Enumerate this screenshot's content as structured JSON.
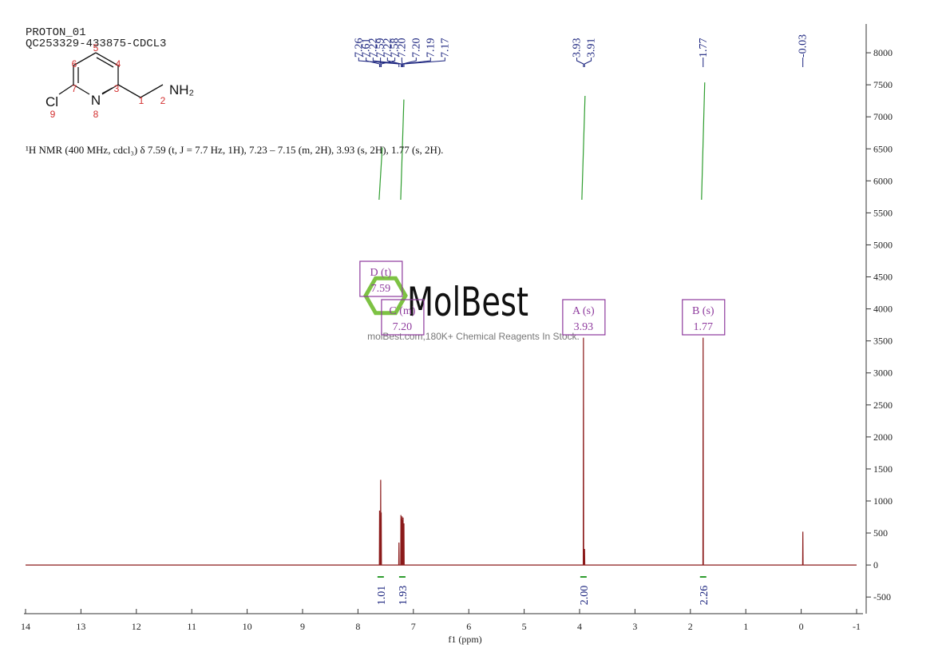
{
  "header": {
    "experiment": "PROTON_01",
    "sample": "QC253329-433875-CDCL3"
  },
  "structure": {
    "atoms": [
      "Cl",
      "N",
      "NH₂"
    ],
    "numbering": [
      1,
      2,
      3,
      4,
      5,
      6,
      7,
      8,
      9
    ]
  },
  "description": "¹H NMR (400 MHz, cdcl₃) δ 7.59 (t, J = 7.7 Hz, 1H), 7.23 – 7.15 (m, 2H), 3.93 (s, 2H), 1.77 (s, 2H).",
  "watermark": {
    "brand": "MolBest",
    "tagline": "molBest.com,180K+ Chemical Reagents In Stock."
  },
  "chart_data": {
    "type": "line",
    "xlabel": "f1 (ppm)",
    "xlim": [
      14,
      -1
    ],
    "xticks": [
      14,
      13,
      12,
      11,
      10,
      9,
      8,
      7,
      6,
      5,
      4,
      3,
      2,
      1,
      0,
      -1
    ],
    "ylim": [
      -760,
      8450
    ],
    "yticks": [
      -500,
      0,
      500,
      1000,
      1500,
      2000,
      2500,
      3000,
      3500,
      4000,
      4500,
      5000,
      5500,
      6000,
      6500,
      7000,
      7500,
      8000
    ],
    "series": [
      {
        "name": "spectrum",
        "color": "#8b1a1a",
        "x": [
          14,
          7.614,
          7.61,
          7.606,
          7.594,
          7.59,
          7.586,
          7.584,
          7.58,
          7.576,
          7.264,
          7.26,
          7.256,
          7.229,
          7.225,
          7.221,
          7.219,
          7.215,
          7.211,
          7.209,
          7.205,
          7.201,
          7.199,
          7.195,
          7.191,
          7.189,
          7.185,
          7.181,
          7.174,
          7.17,
          7.166,
          3.934,
          3.93,
          3.926,
          3.914,
          3.91,
          3.906,
          1.774,
          1.77,
          1.766,
          -0.026,
          -0.03,
          -0.034,
          -1
        ],
        "values": [
          0,
          0,
          850,
          0,
          0,
          1330,
          0,
          0,
          820,
          0,
          0,
          350,
          0,
          0,
          780,
          0,
          0,
          720,
          0,
          0,
          760,
          0,
          0,
          700,
          0,
          0,
          740,
          0,
          0,
          650,
          0,
          0,
          3550,
          0,
          0,
          250,
          0,
          0,
          3550,
          0,
          0,
          520,
          0,
          0
        ]
      }
    ],
    "peak_labels": [
      7.61,
      7.59,
      7.58,
      7.26,
      7.22,
      7.22,
      {
        "value": 7.2,
        "label": "7.20"
      },
      {
        "value": 7.2,
        "label": "7.20"
      },
      7.19,
      7.17,
      3.93,
      3.91,
      1.77,
      -0.03
    ],
    "multiplets": [
      {
        "label": "D (t)",
        "shift": 7.59
      },
      {
        "label": "C (m)",
        "shift": {
          "value": 7.2,
          "label": "7.20"
        }
      },
      {
        "label": "A (s)",
        "shift": 3.93
      },
      {
        "label": "B (s)",
        "shift": 1.77
      }
    ],
    "integrals": {
      "x": [
        7.59,
        7.2,
        3.93,
        1.77
      ],
      "values": [
        1.01,
        1.93,
        2,
        2.26
      ],
      "value_labels": [
        "1.01",
        "1.93",
        "2.00",
        "2.26"
      ],
      "color": "#2e9d2e"
    }
  }
}
